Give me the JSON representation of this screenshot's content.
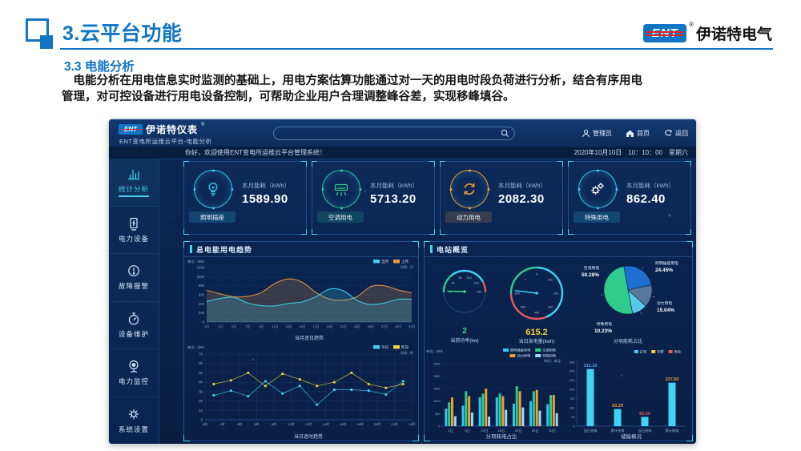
{
  "slide": {
    "title": "3.云平台功能",
    "brand_logo": "ENT",
    "reg_mark": "®",
    "brand_name": "伊诺特电气",
    "section_title": "3.3 电能分析",
    "body_line1": "　电能分析在用电信息实时监测的基础上，用电方案估算功能通过对一天的用电时段负荷进行分析，结合有序用电",
    "body_line2": "管理，对可控设备进行用电设备控制，可帮助企业用户合理调整峰谷差，实现移峰填谷。"
  },
  "dashboard": {
    "logo_text": "ENT",
    "reg_mark": "®",
    "app_name": "伊诺特仪表",
    "app_subtitle": "ENT变电所运维云平台-电能分析",
    "search_placeholder": "",
    "user_label": "管理员",
    "home_label": "首页",
    "back_label": "返回",
    "welcome": "你好，欢迎使用ENT变电所运维云平台管理系统！",
    "datetime": "2020年10月10日　10：10：00　星期六",
    "sidebar": [
      {
        "label": "统计分析"
      },
      {
        "label": "电力设备"
      },
      {
        "label": "故障报警"
      },
      {
        "label": "设备维护"
      },
      {
        "label": "电力监控"
      },
      {
        "label": "系统设置"
      }
    ],
    "kpis": [
      {
        "label": "照明插座",
        "metric": "本月能耗（kWh）",
        "value": "1589.90",
        "color": "#35c8f0"
      },
      {
        "label": "空调用电",
        "metric": "本月能耗（kWh）",
        "value": "5713.20",
        "color": "#2fcc8e"
      },
      {
        "label": "动力用电",
        "metric": "本月能耗（kWh）",
        "value": "2082.30",
        "color": "#f0a02e"
      },
      {
        "label": "特殊用电",
        "metric": "本月能耗（kWh）",
        "value": "862.40",
        "color": "#35c8f0"
      }
    ],
    "panel_titles": {
      "trend": "总电能用电趋势",
      "station": "电站概览"
    }
  },
  "chart_data": [
    {
      "id": "monthly_trend",
      "type": "area",
      "title": "总电能用电趋势",
      "xlabel": "当月逐日趋势",
      "unit": "单位：kWh",
      "time": "时间：日",
      "ylim": [
        0,
        1200
      ],
      "yticks": [
        0,
        200,
        400,
        600,
        800,
        1000,
        1200
      ],
      "x": [
        "1日",
        "3日",
        "5日",
        "7日",
        "9日",
        "11日",
        "13日",
        "15日",
        "17日",
        "19日",
        "21日",
        "23日",
        "25日",
        "27日",
        "29日",
        "31日"
      ],
      "series": [
        {
          "name": "当月",
          "color": "#3fd4f5",
          "values": [
            450,
            520,
            545,
            420,
            360,
            355,
            410,
            445,
            560,
            725,
            690,
            480,
            385,
            420,
            500,
            505
          ]
        },
        {
          "name": "上月",
          "color": "#f09a3e",
          "values": [
            700,
            620,
            555,
            565,
            650,
            850,
            950,
            875,
            650,
            505,
            480,
            560,
            780,
            800,
            705,
            645
          ]
        }
      ]
    },
    {
      "id": "hourly_trend",
      "type": "line",
      "title": "当日逐时趋势",
      "xlabel": "当日逐时趋势",
      "unit": "单位：kWh",
      "time": "时间：时",
      "ylim": [
        0,
        70
      ],
      "yticks": [
        0,
        10,
        20,
        30,
        40,
        50,
        60,
        70
      ],
      "xticks": [
        "0时",
        "2时",
        "4时",
        "6时",
        "8时",
        "10时",
        "12时",
        "14时",
        "16时",
        "18时",
        "20时",
        "22时",
        "24时"
      ],
      "hours": [
        1,
        3,
        5,
        7,
        9,
        11,
        13,
        15,
        17,
        19,
        21,
        23
      ],
      "series": [
        {
          "name": "今日",
          "color": "#3fd4f5",
          "values": [
            26,
            31,
            25,
            41,
            28,
            36,
            16,
            32,
            32,
            31,
            27,
            41
          ]
        },
        {
          "name": "昨日",
          "color": "#f0d23e",
          "values": [
            38,
            42,
            50,
            36,
            49,
            43,
            36,
            40,
            50,
            38,
            34,
            38
          ]
        }
      ]
    },
    {
      "id": "power_gauge",
      "type": "gauge",
      "label": "当前功率(kw)",
      "value": 2,
      "value_display": "2",
      "value_color": "#3fe08a",
      "min": 0,
      "max": 240,
      "ticks": [
        0,
        48,
        96,
        144,
        192,
        240
      ]
    },
    {
      "id": "generation_gauge",
      "type": "gauge",
      "label": "当日发电量(kwh)",
      "value": 615.2,
      "value_display": "615.2",
      "value_color": "#f5d033",
      "min": 0,
      "max": 600,
      "ticks": [
        0,
        100,
        200,
        300,
        400,
        500,
        600
      ]
    },
    {
      "id": "energy_pie",
      "type": "pie",
      "title": "分项能耗占比",
      "slices": [
        {
          "name": "照明插座用电",
          "pct": 24.45,
          "pct_display": "24.45%",
          "color": "#1f6fd0"
        },
        {
          "name": "动力用电",
          "pct": 15.04,
          "pct_display": "15.04%",
          "color": "#56799c"
        },
        {
          "name": "特殊用电",
          "pct": 10.23,
          "pct_display": "10.23%",
          "color": "#57c8ea"
        },
        {
          "name": "空调用电",
          "pct": 50.28,
          "pct_display": "50.28%",
          "color": "#2fcc8e"
        }
      ]
    },
    {
      "id": "breakdown_bars",
      "type": "bar",
      "title": "分项耗电占比",
      "xlabel": "分项耗电占比",
      "unit": "单位：kWh",
      "time": "时间：本月",
      "ylim": [
        0,
        2500
      ],
      "yticks": [
        0,
        500,
        1000,
        1500,
        2000,
        2500
      ],
      "categories": [
        "1日",
        "5日",
        "10日",
        "15日",
        "20日",
        "25日",
        "30日"
      ],
      "series": [
        {
          "name": "照明插座用电",
          "color": "#35c8f0",
          "values": [
            700,
            820,
            1150,
            1150,
            900,
            1000,
            880
          ]
        },
        {
          "name": "空调用电",
          "color": "#2fcc8e",
          "values": [
            950,
            1400,
            1300,
            1300,
            1600,
            1400,
            1250
          ]
        },
        {
          "name": "动力用电",
          "color": "#f0a02e",
          "values": [
            1150,
            1200,
            1500,
            1200,
            1400,
            1450,
            1250
          ]
        },
        {
          "name": "特殊用电",
          "color": "#9fd8f5",
          "values": [
            400,
            550,
            380,
            650,
            750,
            620,
            520
          ]
        }
      ]
    },
    {
      "id": "storage_bars",
      "type": "bar",
      "title": "储能概况",
      "xlabel": "储能概况",
      "ylim": [
        0,
        350
      ],
      "yticks": [
        0,
        50,
        100,
        150,
        200,
        250,
        300,
        350
      ],
      "categories": [
        "当日充电",
        "累计充电",
        "当日放电",
        "累计放电"
      ],
      "values": [
        312.1,
        93.2,
        50.6,
        237.6
      ],
      "value_labels": [
        "312.10",
        "93.20",
        "50.60",
        "237.60"
      ],
      "value_colors": [
        "#4fa8f0",
        "#f0a02e",
        "#e85a5a",
        "#f0a02e"
      ],
      "bar_color": "#3fd4f5",
      "legend": [
        {
          "name": "正常",
          "color": "#3fd4f5"
        },
        {
          "name": "告警",
          "color": "#f0d23e"
        },
        {
          "name": "危险",
          "color": "#e85a5a"
        }
      ]
    }
  ]
}
